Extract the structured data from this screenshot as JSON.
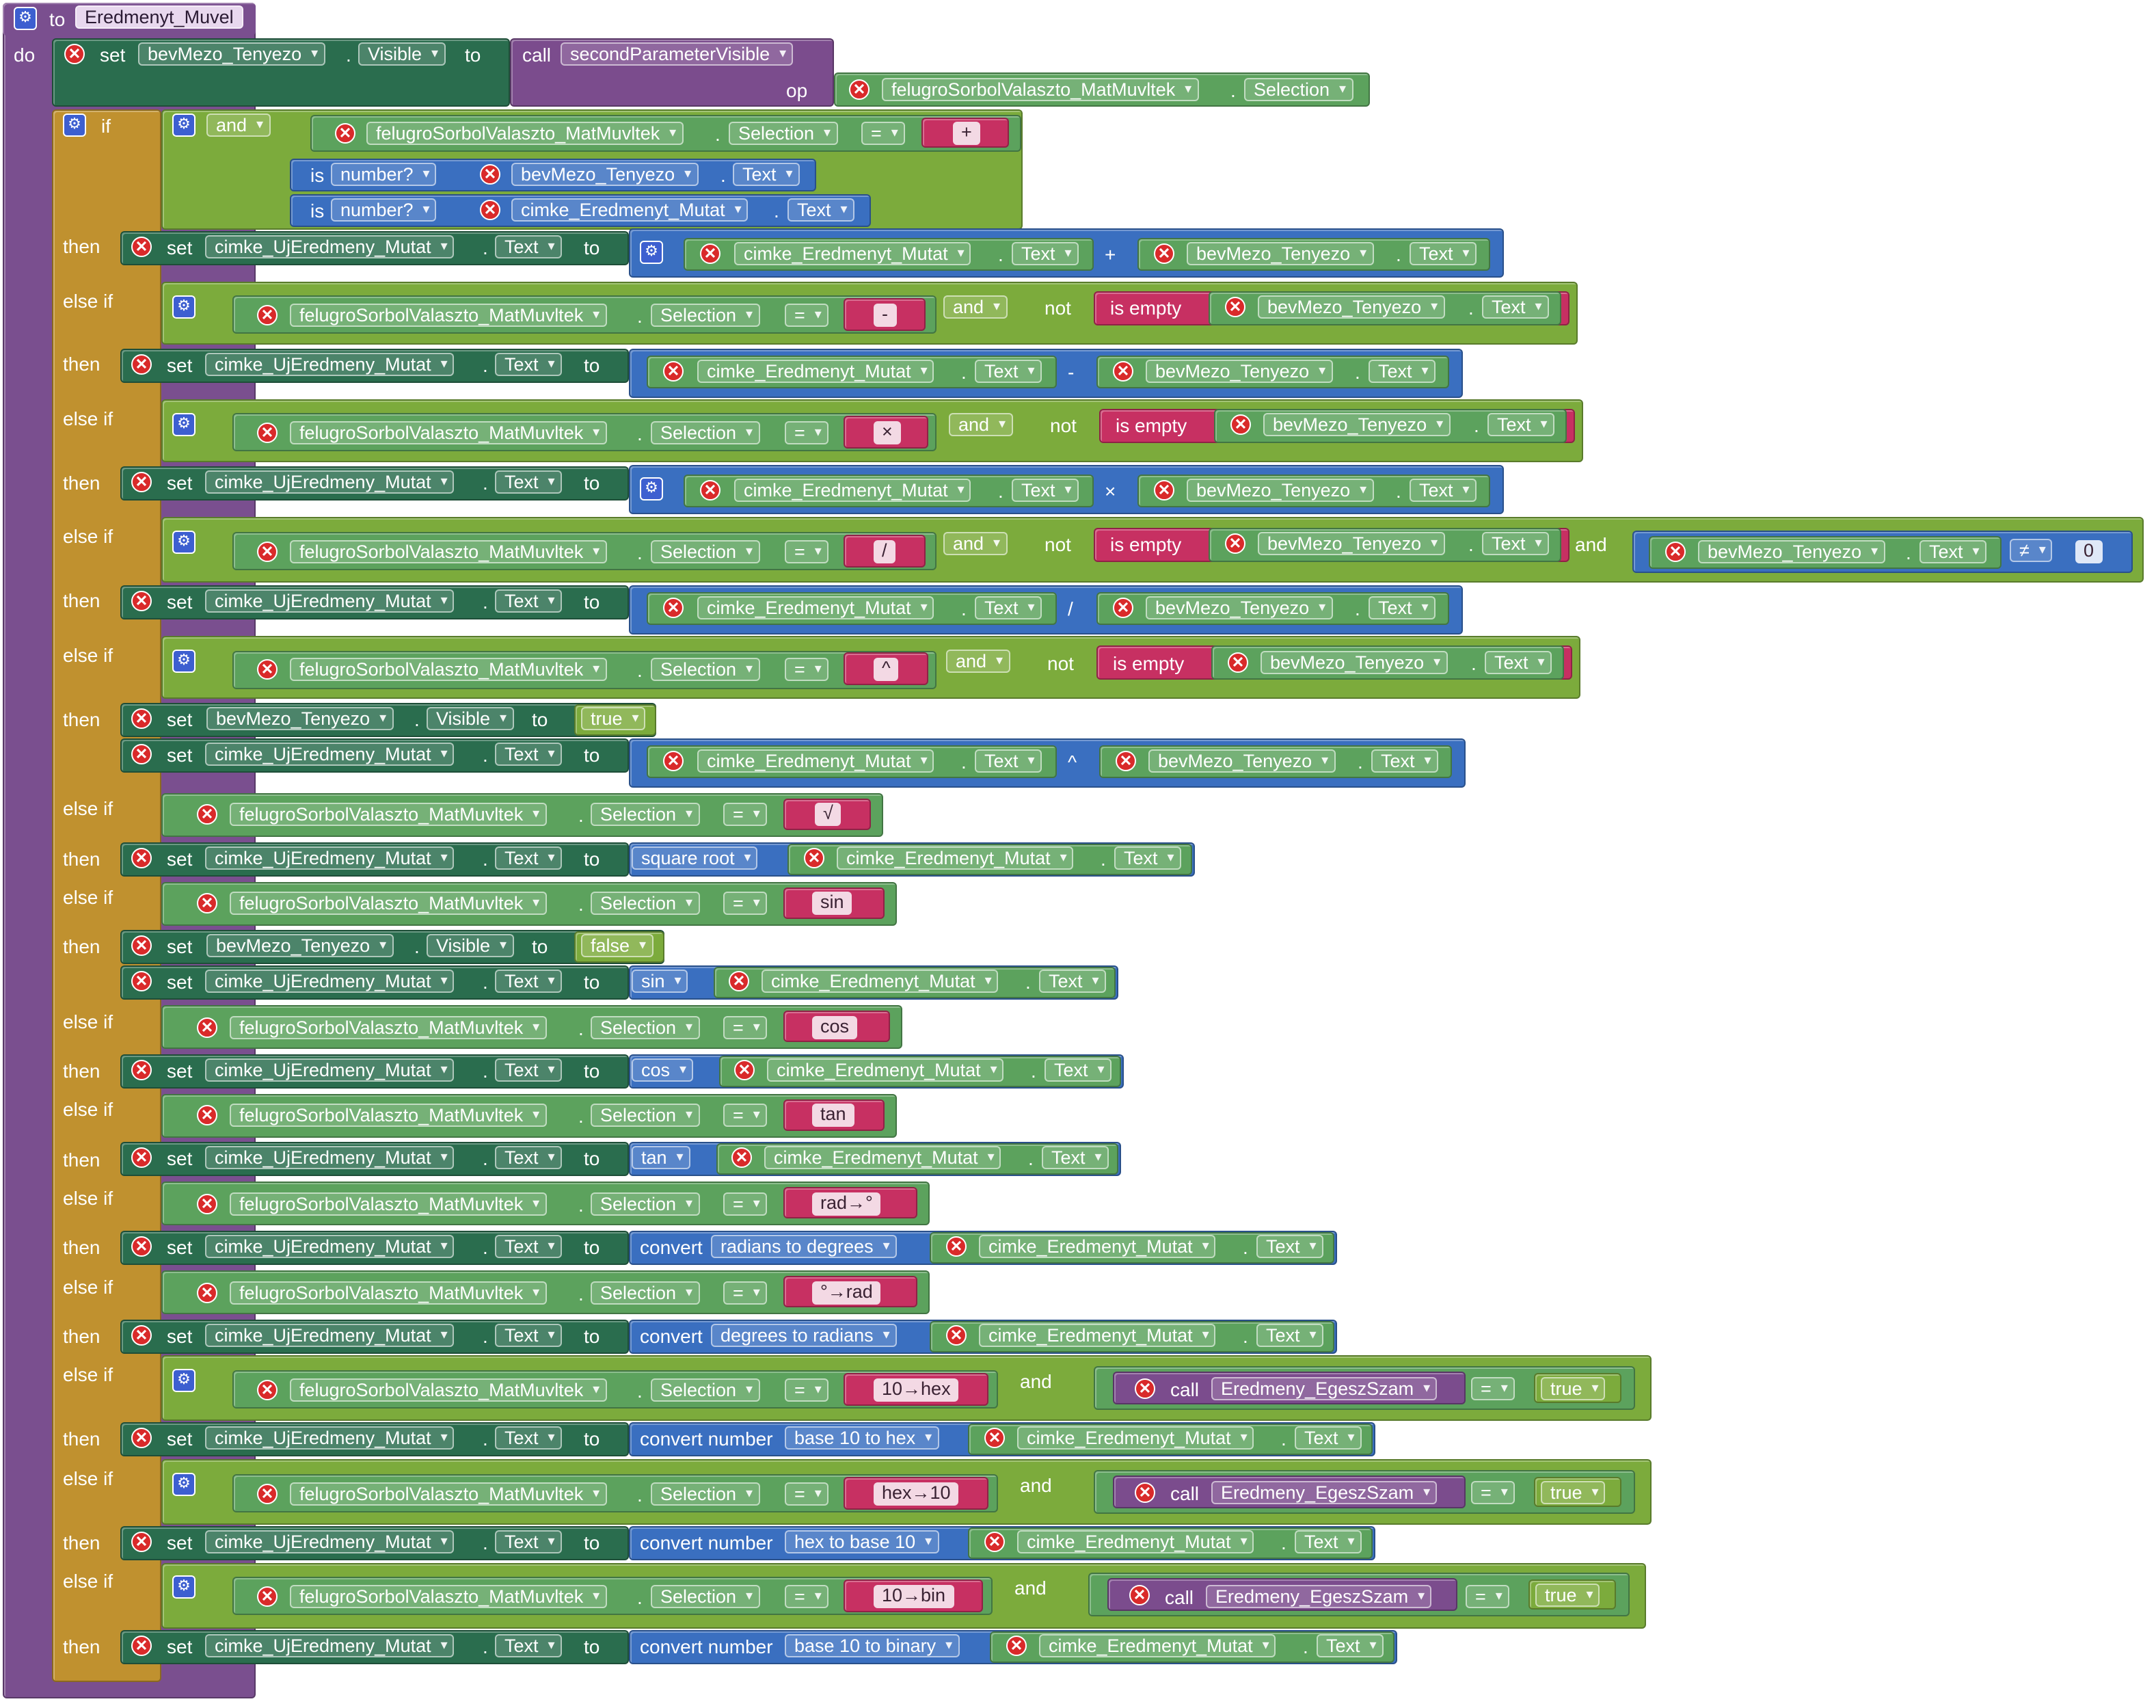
{
  "procedure": {
    "to": "to",
    "name": "Eredmenyt_Muvel",
    "do": "do"
  },
  "first_set": {
    "set": "set",
    "component": "bevMezo_Tenyezo",
    "property": "Visible",
    "to": "to",
    "call": "call",
    "procedure": "secondParameterVisible",
    "op": "op",
    "op_component": "felugroSorbolValaszto_MatMuvltek",
    "op_property": "Selection"
  },
  "keywords": {
    "if": "if",
    "else_if": "else if",
    "then": "then",
    "set": "set",
    "to": "to",
    "and": "and",
    "not": "not",
    "is_empty": "is empty",
    "is": "is",
    "number_q": "number?",
    "call": "call",
    "convert": "convert",
    "convert_number": "convert number",
    "eq": "=",
    "dot": "."
  },
  "components": {
    "selector": "felugroSorbolValaszto_MatMuvltek",
    "selection": "Selection",
    "input": "bevMezo_Tenyezo",
    "text": "Text",
    "visible": "Visible",
    "label_result": "cimke_Eredmenyt_Mutat",
    "label_new": "cimke_UjEredmeny_Mutat",
    "proc_integer": "Eredmeny_EgeszSzam"
  },
  "values": {
    "plus": "+",
    "minus": "-",
    "times": "×",
    "div": "/",
    "pow": "^",
    "neq": "≠",
    "zero": "0",
    "true": "true",
    "false": "false",
    "sqrt_sym": "√",
    "sin": "sin",
    "cos": "cos",
    "tan": "tan",
    "rad_to_deg": "rad→°",
    "deg_to_rad": "°→rad",
    "ten_hex": "10→hex",
    "hex_ten": "hex→10",
    "ten_bin": "10→bin",
    "square_root": "square root",
    "radians_to_degrees": "radians to degrees",
    "degrees_to_radians": "degrees to radians",
    "base10_hex": "base 10 to hex",
    "hex_base10": "hex to base 10",
    "base10_binary": "base 10 to binary",
    "q_open": "“",
    "q_close": "”"
  },
  "colors": {
    "procedure": "#7a4f8f",
    "control": "#c0912f",
    "component_set": "#2a6d4e",
    "logic": "#7cab3c",
    "math": "#3a6fc0",
    "text": "#c73062",
    "component_get": "#5ca25d",
    "error_badge": "#d92a2a"
  }
}
